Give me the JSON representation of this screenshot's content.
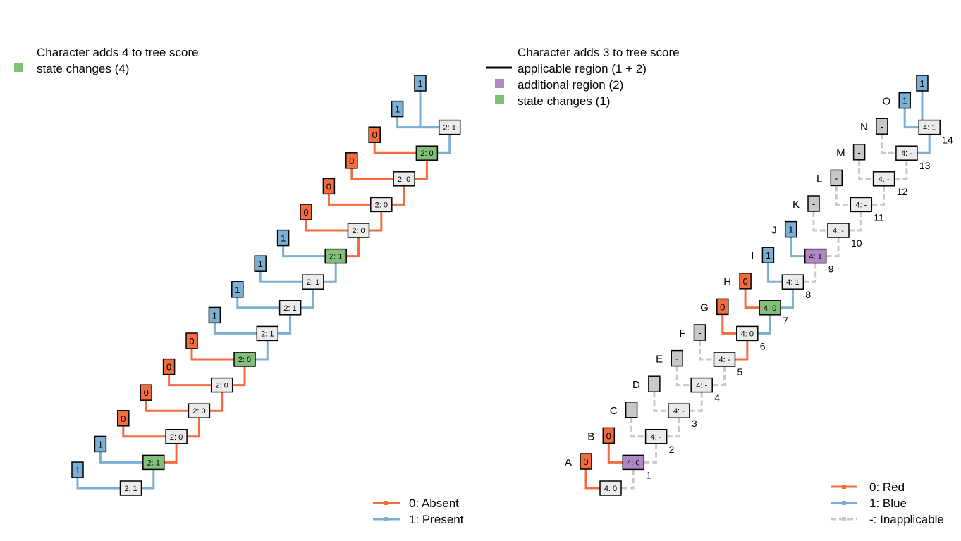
{
  "colors": {
    "red": "#F26C3F",
    "blue": "#7BAFD4",
    "grey": "#C8C8C8",
    "green": "#82C07A",
    "purple": "#AF88C4",
    "node_fill": "#EBEBEB",
    "stroke": "#000000"
  },
  "left_panel": {
    "legend": {
      "title": "Character adds 4 to tree score",
      "state_changes": "state changes (4)"
    },
    "key": [
      {
        "state": "red",
        "label": "0: Absent"
      },
      {
        "state": "blue",
        "label": "1: Present"
      }
    ],
    "tips_top_down": [
      "1",
      "1",
      "0",
      "0",
      "0",
      "0",
      "1",
      "1",
      "1",
      "1",
      "0",
      "0",
      "0",
      "0",
      "1",
      "1"
    ],
    "tip_states_top_down": [
      "blue",
      "blue",
      "red",
      "red",
      "red",
      "red",
      "blue",
      "blue",
      "blue",
      "blue",
      "red",
      "red",
      "red",
      "red",
      "blue",
      "blue"
    ],
    "nodes_bottom_up": [
      {
        "label": "2: 1",
        "state": "blue",
        "change": false
      },
      {
        "label": "2: 1",
        "state": "blue",
        "change": true
      },
      {
        "label": "2: 0",
        "state": "red",
        "change": false
      },
      {
        "label": "2: 0",
        "state": "red",
        "change": false
      },
      {
        "label": "2: 0",
        "state": "red",
        "change": false
      },
      {
        "label": "2: 0",
        "state": "red",
        "change": true
      },
      {
        "label": "2: 1",
        "state": "blue",
        "change": false
      },
      {
        "label": "2: 1",
        "state": "blue",
        "change": false
      },
      {
        "label": "2: 1",
        "state": "blue",
        "change": false
      },
      {
        "label": "2: 1",
        "state": "blue",
        "change": true
      },
      {
        "label": "2: 0",
        "state": "red",
        "change": false
      },
      {
        "label": "2: 0",
        "state": "red",
        "change": false
      },
      {
        "label": "2: 0",
        "state": "red",
        "change": false
      },
      {
        "label": "2: 0",
        "state": "red",
        "change": true
      },
      {
        "label": "2: 1",
        "state": "blue",
        "change": false
      }
    ]
  },
  "right_panel": {
    "legend": {
      "title": "Character adds 3 to tree score",
      "applicable": "applicable region (1 + 2)",
      "additional": "additional region (2)",
      "state_changes": "state changes (1)"
    },
    "key": [
      {
        "state": "red",
        "label": "0: Red"
      },
      {
        "state": "blue",
        "label": "1: Blue"
      },
      {
        "state": "grey",
        "label": "-: Inapplicable"
      }
    ],
    "tips": [
      {
        "name": "A",
        "label": "0",
        "state": "red"
      },
      {
        "name": "B",
        "label": "0",
        "state": "red"
      },
      {
        "name": "C",
        "label": "-",
        "state": "grey"
      },
      {
        "name": "D",
        "label": "-",
        "state": "grey"
      },
      {
        "name": "E",
        "label": "-",
        "state": "grey"
      },
      {
        "name": "F",
        "label": "-",
        "state": "grey"
      },
      {
        "name": "G",
        "label": "0",
        "state": "red"
      },
      {
        "name": "H",
        "label": "0",
        "state": "red"
      },
      {
        "name": "I",
        "label": "1",
        "state": "blue"
      },
      {
        "name": "J",
        "label": "1",
        "state": "blue"
      },
      {
        "name": "K",
        "label": "-",
        "state": "grey"
      },
      {
        "name": "L",
        "label": "-",
        "state": "grey"
      },
      {
        "name": "M",
        "label": "-",
        "state": "grey"
      },
      {
        "name": "N",
        "label": "-",
        "state": "grey"
      },
      {
        "name": "O",
        "label": "1",
        "state": "blue"
      },
      {
        "name": "",
        "label": "1",
        "state": "blue"
      }
    ],
    "nodes": [
      {
        "label": "4: 0",
        "state": "red",
        "fill": "node",
        "number": ""
      },
      {
        "label": "4: 0",
        "state": "grey",
        "fill": "purple",
        "number": "1"
      },
      {
        "label": "4: -",
        "state": "grey",
        "fill": "node",
        "number": "2"
      },
      {
        "label": "4: -",
        "state": "grey",
        "fill": "node",
        "number": "3"
      },
      {
        "label": "4: -",
        "state": "grey",
        "fill": "node",
        "number": "4"
      },
      {
        "label": "4: -",
        "state": "grey",
        "fill": "node",
        "number": "5"
      },
      {
        "label": "4: 0",
        "state": "red",
        "fill": "node",
        "number": "6"
      },
      {
        "label": "4: 0",
        "state": "blue",
        "fill": "green",
        "number": "7"
      },
      {
        "label": "4: 1",
        "state": "blue",
        "fill": "node",
        "number": "8"
      },
      {
        "label": "4: 1",
        "state": "grey",
        "fill": "purple",
        "number": "9"
      },
      {
        "label": "4: -",
        "state": "grey",
        "fill": "node",
        "number": "10"
      },
      {
        "label": "4: -",
        "state": "grey",
        "fill": "node",
        "number": "11"
      },
      {
        "label": "4: -",
        "state": "grey",
        "fill": "node",
        "number": "12"
      },
      {
        "label": "4: -",
        "state": "grey",
        "fill": "node",
        "number": "13"
      },
      {
        "label": "4: 1",
        "state": "blue",
        "fill": "node",
        "number": "14"
      }
    ]
  }
}
